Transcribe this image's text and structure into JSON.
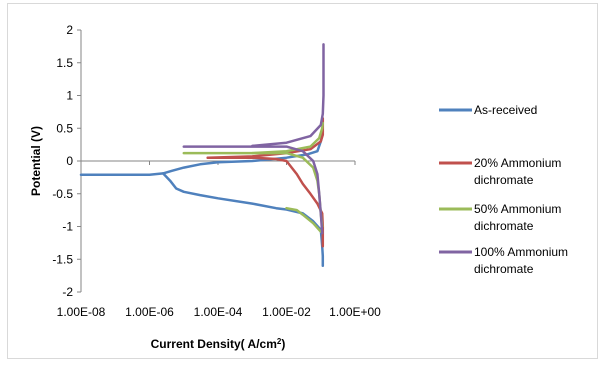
{
  "chart_data": {
    "type": "line",
    "title": "",
    "xlabel": "Current Density( A/cm2)",
    "xlabel_base": "Current Density( A/cm",
    "xlabel_sup": "2",
    "xlabel_tail": ")",
    "ylabel": "Potential (V)",
    "x_scale": "log",
    "xlim": [
      1e-08,
      1
    ],
    "ylim": [
      -2,
      2
    ],
    "x_ticks": [
      1e-08,
      1e-06,
      0.0001,
      0.01,
      1
    ],
    "x_tick_labels": [
      "1.00E-08",
      "1.00E-06",
      "1.00E-04",
      "1.00E-02",
      "1.00E+00"
    ],
    "y_ticks": [
      -2,
      -1.5,
      -1,
      -0.5,
      0,
      0.5,
      1,
      1.5,
      2
    ],
    "y_tick_labels": [
      "-2",
      "-1.5",
      "-1",
      "-0.5",
      "0",
      "0.5",
      "1",
      "1.5",
      "2"
    ],
    "grid": false,
    "legend_position": "right",
    "series": [
      {
        "name": "As-received",
        "legend_lines": [
          "As-received"
        ],
        "color": "#4f81bd",
        "points": [
          [
            1e-08,
            -0.21
          ],
          [
            3e-07,
            -0.21
          ],
          [
            1e-06,
            -0.21
          ],
          [
            2.5e-06,
            -0.19
          ],
          [
            4.5e-06,
            -0.15
          ],
          [
            1e-05,
            -0.1
          ],
          [
            3e-05,
            -0.05
          ],
          [
            0.0001,
            -0.02
          ],
          [
            0.001,
            0.0
          ],
          [
            0.01,
            0.05
          ],
          [
            0.04,
            0.1
          ],
          [
            0.08,
            0.15
          ],
          [
            0.1,
            0.3
          ],
          [
            0.11,
            0.4
          ],
          [
            0.115,
            0.45
          ]
        ],
        "points_lower": [
          [
            2.5e-06,
            -0.19
          ],
          [
            4e-06,
            -0.3
          ],
          [
            6e-06,
            -0.42
          ],
          [
            1e-05,
            -0.47
          ],
          [
            3e-05,
            -0.52
          ],
          [
            0.0001,
            -0.57
          ],
          [
            0.001,
            -0.65
          ],
          [
            0.005,
            -0.72
          ],
          [
            0.01,
            -0.74
          ],
          [
            0.03,
            -0.8
          ],
          [
            0.06,
            -0.92
          ],
          [
            0.1,
            -1.05
          ],
          [
            0.11,
            -1.3
          ],
          [
            0.115,
            -1.45
          ],
          [
            0.115,
            -1.6
          ]
        ]
      },
      {
        "name": "20% Ammonium dichromate",
        "legend_lines": [
          "20% Ammonium",
          "dichromate"
        ],
        "color": "#c0504d",
        "points": [
          [
            5e-05,
            0.05
          ],
          [
            0.001,
            0.05
          ],
          [
            0.005,
            0.03
          ],
          [
            0.01,
            0.0
          ],
          [
            0.02,
            -0.2
          ],
          [
            0.03,
            -0.35
          ],
          [
            0.05,
            -0.5
          ],
          [
            0.08,
            -0.65
          ],
          [
            0.11,
            -0.8
          ],
          [
            0.115,
            -1.0
          ],
          [
            0.115,
            -1.3
          ]
        ],
        "points_upper": [
          [
            5e-05,
            0.05
          ],
          [
            0.001,
            0.07
          ],
          [
            0.01,
            0.12
          ],
          [
            0.05,
            0.18
          ],
          [
            0.1,
            0.3
          ],
          [
            0.115,
            0.4
          ],
          [
            0.115,
            0.65
          ]
        ]
      },
      {
        "name": "50% Ammonium dichromate",
        "legend_lines": [
          "50% Ammonium",
          "dichromate"
        ],
        "color": "#9bbb59",
        "points": [
          [
            1e-05,
            0.12
          ],
          [
            0.001,
            0.12
          ],
          [
            0.01,
            0.12
          ],
          [
            0.03,
            0.05
          ],
          [
            0.06,
            -0.1
          ],
          [
            0.08,
            -0.3
          ],
          [
            0.09,
            -0.5
          ],
          [
            0.1,
            -0.8
          ],
          [
            0.11,
            -1.0
          ]
        ],
        "points_upper": [
          [
            0.001,
            0.12
          ],
          [
            0.01,
            0.15
          ],
          [
            0.05,
            0.22
          ],
          [
            0.09,
            0.35
          ],
          [
            0.11,
            0.5
          ],
          [
            0.115,
            0.58
          ]
        ],
        "points_tail": [
          [
            0.01,
            -0.72
          ],
          [
            0.02,
            -0.75
          ],
          [
            0.03,
            -0.82
          ],
          [
            0.06,
            -0.95
          ],
          [
            0.1,
            -1.08
          ]
        ]
      },
      {
        "name": "100% Ammonium dichromate",
        "legend_lines": [
          "100% Ammonium",
          "dichromate"
        ],
        "color": "#8064a2",
        "points": [
          [
            1e-05,
            0.22
          ],
          [
            0.001,
            0.22
          ],
          [
            0.01,
            0.22
          ],
          [
            0.03,
            0.15
          ],
          [
            0.06,
            0.0
          ],
          [
            0.08,
            -0.2
          ],
          [
            0.09,
            -0.5
          ],
          [
            0.1,
            -0.8
          ],
          [
            0.11,
            -1.1
          ]
        ],
        "points_upper": [
          [
            0.001,
            0.23
          ],
          [
            0.01,
            0.28
          ],
          [
            0.05,
            0.38
          ],
          [
            0.1,
            0.55
          ],
          [
            0.115,
            0.72
          ],
          [
            0.12,
            1.0
          ],
          [
            0.12,
            1.78
          ]
        ]
      }
    ]
  }
}
